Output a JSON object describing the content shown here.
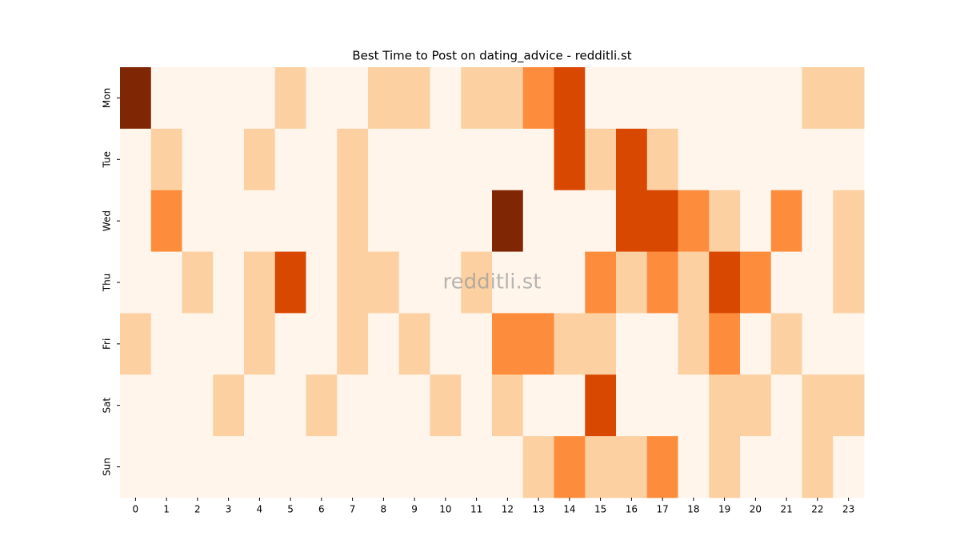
{
  "chart_data": {
    "type": "heatmap",
    "title": "Best Time to Post on dating_advice - redditli.st",
    "watermark": "redditli.st",
    "x": [
      0,
      1,
      2,
      3,
      4,
      5,
      6,
      7,
      8,
      9,
      10,
      11,
      12,
      13,
      14,
      15,
      16,
      17,
      18,
      19,
      20,
      21,
      22,
      23
    ],
    "categories": [
      "Mon",
      "Tue",
      "Wed",
      "Thu",
      "Fri",
      "Sat",
      "Sun"
    ],
    "colormap": [
      "#fff5eb",
      "#fdd0a2",
      "#fd8d3c",
      "#d94801",
      "#7f2704"
    ],
    "values": [
      [
        4,
        0,
        0,
        0,
        0,
        1,
        0,
        0,
        1,
        1,
        0,
        1,
        1,
        2,
        3,
        0,
        0,
        0,
        0,
        0,
        0,
        0,
        1,
        1
      ],
      [
        0,
        1,
        0,
        0,
        1,
        0,
        0,
        1,
        0,
        0,
        0,
        0,
        0,
        0,
        3,
        1,
        3,
        1,
        0,
        0,
        0,
        0,
        0,
        0
      ],
      [
        0,
        2,
        0,
        0,
        0,
        0,
        0,
        1,
        0,
        0,
        0,
        0,
        4,
        0,
        0,
        0,
        3,
        3,
        2,
        1,
        0,
        2,
        0,
        1
      ],
      [
        0,
        0,
        1,
        0,
        1,
        3,
        0,
        1,
        1,
        0,
        0,
        1,
        0,
        0,
        0,
        2,
        1,
        2,
        1,
        3,
        2,
        0,
        0,
        1
      ],
      [
        1,
        0,
        0,
        0,
        1,
        0,
        0,
        1,
        0,
        1,
        0,
        0,
        2,
        2,
        1,
        1,
        0,
        0,
        1,
        2,
        0,
        1,
        0,
        0
      ],
      [
        0,
        0,
        0,
        1,
        0,
        0,
        1,
        0,
        0,
        0,
        1,
        0,
        1,
        0,
        0,
        3,
        0,
        0,
        0,
        1,
        1,
        0,
        1,
        1
      ],
      [
        0,
        0,
        0,
        0,
        0,
        0,
        0,
        0,
        0,
        0,
        0,
        0,
        0,
        1,
        2,
        1,
        1,
        2,
        0,
        1,
        0,
        0,
        1,
        0
      ]
    ]
  }
}
